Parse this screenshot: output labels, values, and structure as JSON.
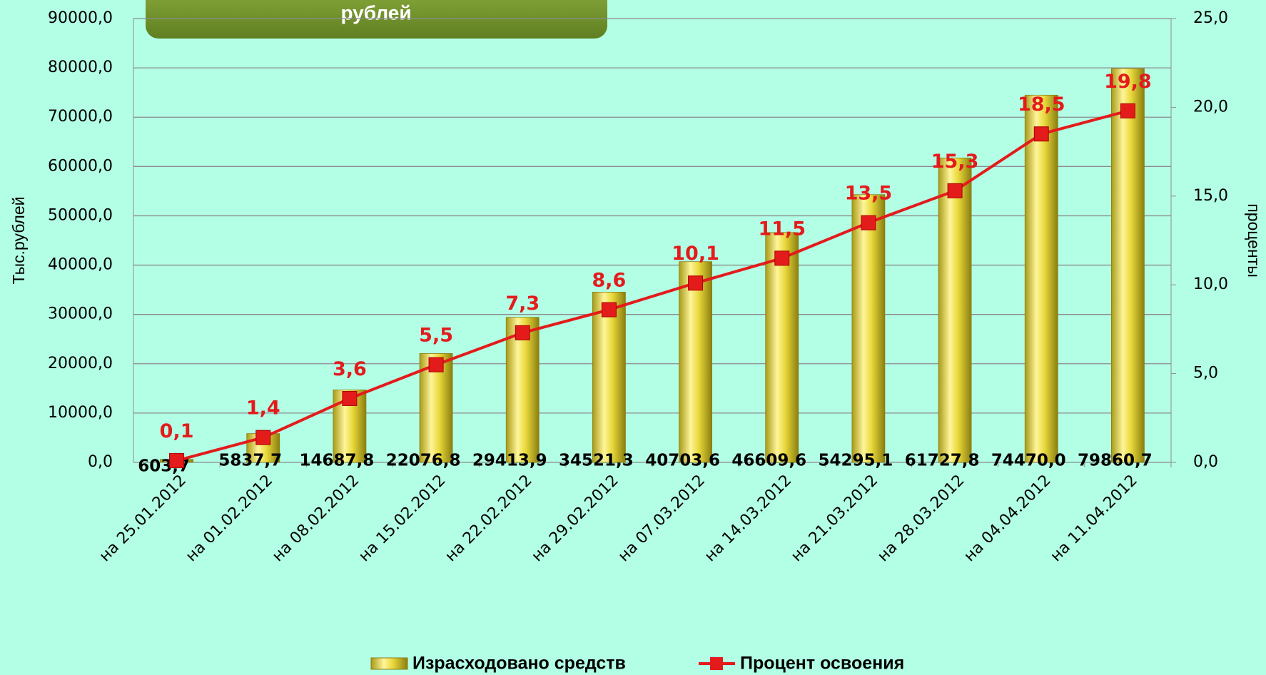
{
  "chart_data": {
    "type": "bar",
    "title": "рублей",
    "y_label": "Тыс.рублей",
    "y2_label": "проценты",
    "categories": [
      "на 25.01.2012",
      "на 01.02.2012",
      "на 08.02.2012",
      "на 15.02.2012",
      "на 22.02.2012",
      "на 29.02.2012",
      "на 07.03.2012",
      "на 14.03.2012",
      "на 21.03.2012",
      "на 28.03.2012",
      "на 04.04.2012",
      "на 11.04.2012"
    ],
    "series": [
      {
        "name": "Израсходовано средств",
        "color": "#e8d83a",
        "values": [
          603.7,
          5837.7,
          14687.8,
          22076.8,
          29413.9,
          34521.3,
          40703.6,
          46609.6,
          54295.1,
          61727.8,
          74470.0,
          79860.7
        ],
        "value_labels": [
          "603,7",
          "5837,7",
          "14687,8",
          "22076,8",
          "29413,9",
          "34521,3",
          "40703,6",
          "46609,6",
          "54295,1",
          "61727,8",
          "74470,0",
          "79860,7"
        ]
      },
      {
        "name": "Процент освоения",
        "color": "#e31b1b",
        "axis": "y2",
        "values": [
          0.1,
          1.4,
          3.6,
          5.5,
          7.3,
          8.6,
          10.1,
          11.5,
          13.5,
          15.3,
          18.5,
          19.8
        ],
        "value_labels": [
          "0,1",
          "1,4",
          "3,6",
          "5,5",
          "7,3",
          "8,6",
          "10,1",
          "11,5",
          "13,5",
          "15,3",
          "18,5",
          "19,8"
        ]
      }
    ],
    "ylim": [
      0,
      90000
    ],
    "yticks": [
      {
        "value": 0,
        "label": "0,0"
      },
      {
        "value": 10000,
        "label": "10000,0"
      },
      {
        "value": 20000,
        "label": "20000,0"
      },
      {
        "value": 30000,
        "label": "30000,0"
      },
      {
        "value": 40000,
        "label": "40000,0"
      },
      {
        "value": 50000,
        "label": "50000,0"
      },
      {
        "value": 60000,
        "label": "60000,0"
      },
      {
        "value": 70000,
        "label": "70000,0"
      },
      {
        "value": 80000,
        "label": "80000,0"
      },
      {
        "value": 90000,
        "label": "90000,0"
      }
    ],
    "y2lim": [
      0,
      25
    ],
    "y2ticks": [
      {
        "value": 0,
        "label": "0,0"
      },
      {
        "value": 5,
        "label": "5,0"
      },
      {
        "value": 10,
        "label": "10,0"
      },
      {
        "value": 15,
        "label": "15,0"
      },
      {
        "value": 20,
        "label": "20,0"
      },
      {
        "value": 25,
        "label": "25,0"
      }
    ],
    "grid": true,
    "legend": "bottom"
  }
}
